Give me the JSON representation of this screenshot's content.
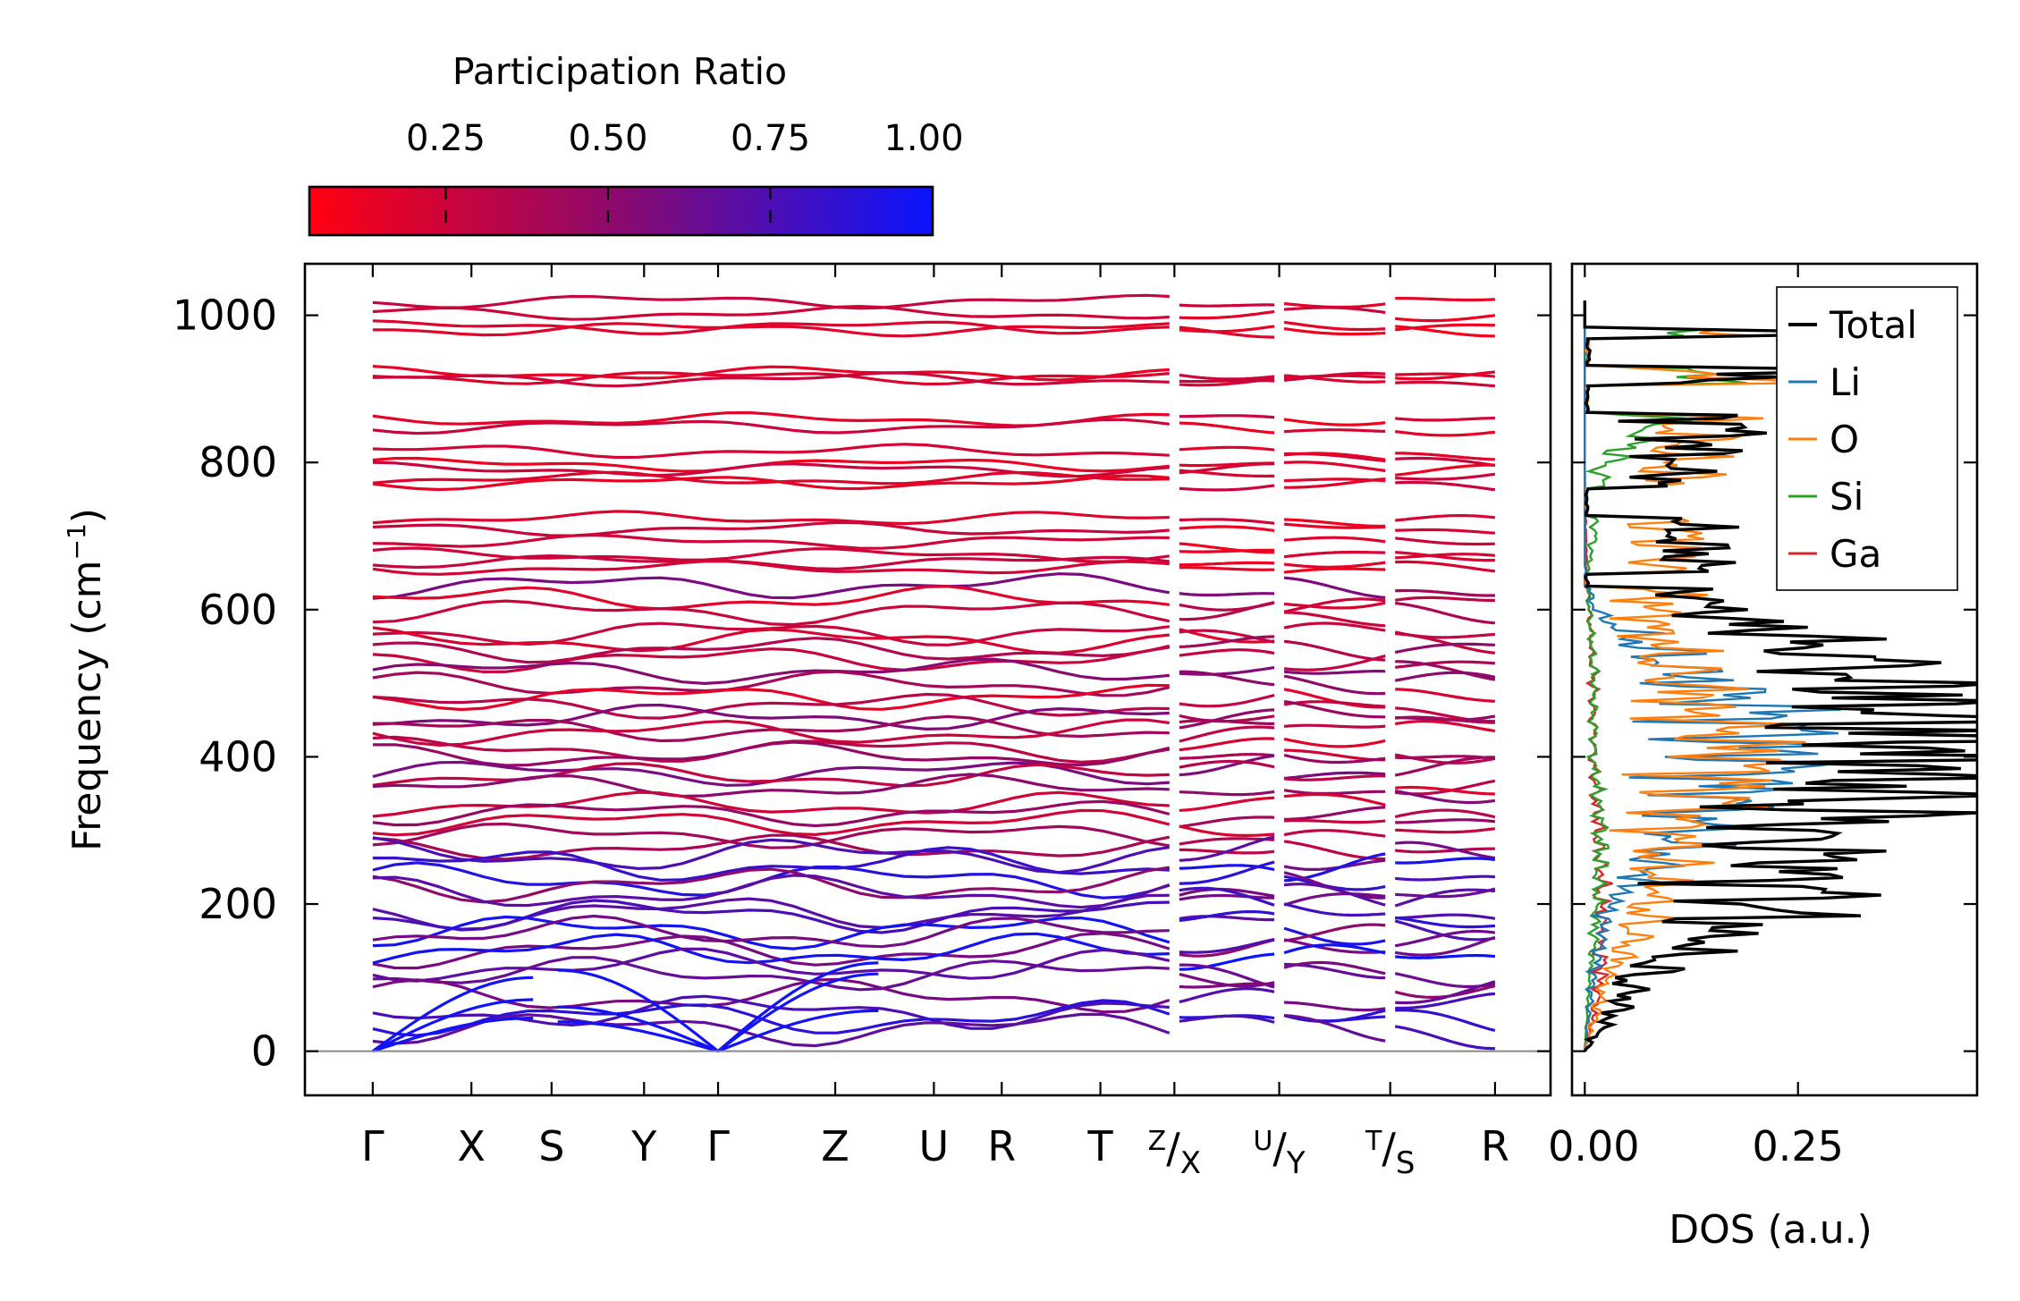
{
  "colorbar": {
    "label": "Participation Ratio",
    "tick_labels": [
      "0.25",
      "0.50",
      "0.75",
      "1.00"
    ],
    "ticks": [
      0.25,
      0.5,
      0.75,
      1.0
    ],
    "range": [
      0.04,
      1.0
    ],
    "color_low": "#ff0012",
    "color_mid": "#8a0a6e",
    "color_high": "#0a14ff"
  },
  "chart_data": [
    {
      "type": "line",
      "title": "",
      "xlabel": "",
      "ylabel": "Frequency (cm⁻¹)",
      "ylabel_text": "Frequency (cm",
      "ylabel_sup": "−1",
      "ylabel_close": ")",
      "ylim": [
        -60,
        1070
      ],
      "yticks": [
        0,
        200,
        400,
        600,
        800,
        1000
      ],
      "ytick_labels": [
        "0",
        "200",
        "400",
        "600",
        "800",
        "1000"
      ],
      "xtick_labels": [
        "Γ",
        "X",
        "S",
        "Y",
        "Γ",
        "Z",
        "U",
        "R",
        "T",
        "Z/X",
        "U/Y",
        "T/S",
        "R"
      ],
      "xtick_positions": [
        0,
        0.8,
        1.45,
        2.2,
        2.8,
        3.75,
        4.55,
        5.1,
        5.9,
        6.5,
        7.35,
        8.25,
        9.1
      ],
      "path_breaks": [
        6.5,
        7.35,
        8.25
      ],
      "zero_line": 0,
      "bands_high_freq": [
        1018,
        1000,
        985,
        980,
        922,
        918,
        912,
        862,
        848,
        812,
        800,
        790,
        780,
        770,
        722,
        708,
        690,
        676,
        668,
        655
      ],
      "bands_mid_freq": [
        628,
        615,
        600,
        575,
        560,
        548,
        532,
        515,
        500,
        482,
        470,
        455,
        440,
        428,
        412,
        400,
        385,
        372,
        355,
        340,
        320,
        305,
        290,
        278
      ],
      "bands_low_freq": [
        265,
        250,
        235,
        222,
        210,
        195,
        182,
        168,
        155,
        142,
        128,
        112,
        96,
        80,
        62,
        45,
        30
      ],
      "color_meaning": "participation ratio (red low, blue high)"
    },
    {
      "type": "line",
      "title": "",
      "xlabel": "DOS (a.u.)",
      "ylabel": "",
      "xlim": [
        -0.015,
        0.46
      ],
      "xticks": [
        0.0,
        0.25
      ],
      "xtick_labels": [
        "0.00",
        "0.25"
      ],
      "ylim": [
        -60,
        1070
      ],
      "legend_position": "top-right",
      "series": [
        {
          "name": "Total",
          "color": "#000000"
        },
        {
          "name": "Li",
          "color": "#1f77b4"
        },
        {
          "name": "O",
          "color": "#ff7f0e"
        },
        {
          "name": "Si",
          "color": "#2ca02c"
        },
        {
          "name": "Ga",
          "color": "#d62728"
        }
      ],
      "peaks": [
        {
          "freq": 0,
          "total": 0,
          "li": 0,
          "o": 0,
          "si": 0,
          "ga": 0
        },
        {
          "freq": 100,
          "total": 0.06,
          "li": 0.01,
          "o": 0.025,
          "si": 0.005,
          "ga": 0.02
        },
        {
          "freq": 200,
          "total": 0.23,
          "li": 0.03,
          "o": 0.08,
          "si": 0.015,
          "ga": 0.02
        },
        {
          "freq": 300,
          "total": 0.24,
          "li": 0.12,
          "o": 0.1,
          "si": 0.02,
          "ga": 0.015
        },
        {
          "freq": 400,
          "total": 0.43,
          "li": 0.22,
          "o": 0.2,
          "si": 0.01,
          "ga": 0.01
        },
        {
          "freq": 450,
          "total": 0.4,
          "li": 0.22,
          "o": 0.15,
          "si": 0.01,
          "ga": 0.01
        },
        {
          "freq": 520,
          "total": 0.33,
          "li": 0.12,
          "o": 0.1,
          "si": 0.01,
          "ga": 0.01
        },
        {
          "freq": 600,
          "total": 0.14,
          "li": 0.01,
          "o": 0.08,
          "si": 0.005,
          "ga": 0.005
        },
        {
          "freq": 660,
          "total": 0.12,
          "li": 0.0,
          "o": 0.1,
          "si": 0.005,
          "ga": 0.002
        },
        {
          "freq": 790,
          "total": 0.11,
          "li": 0.0,
          "o": 0.1,
          "si": 0.02,
          "ga": 0.0
        },
        {
          "freq": 918,
          "total": 0.19,
          "li": 0.0,
          "o": 0.17,
          "si": 0.15,
          "ga": 0.0
        },
        {
          "freq": 982,
          "total": 0.22,
          "li": 0.0,
          "o": 0.18,
          "si": 0.14,
          "ga": 0.0
        }
      ]
    }
  ]
}
